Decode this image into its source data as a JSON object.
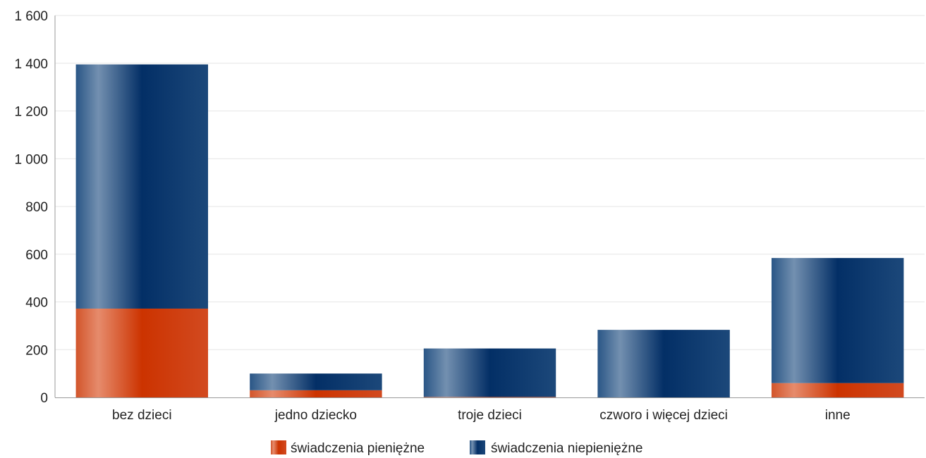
{
  "chart_data": {
    "type": "bar",
    "stacked": true,
    "title": "",
    "xlabel": "",
    "ylabel": "",
    "categories": [
      "bez dzieci",
      "jedno dziecko",
      "troje dzieci",
      "czworo i więcej dzieci",
      "inne"
    ],
    "series": [
      {
        "name": "świadczenia pieniężne",
        "values": [
          372,
          30,
          2,
          0,
          60
        ],
        "color": "#cc3300"
      },
      {
        "name": "świadczenia niepieniężne",
        "values": [
          1023,
          70,
          203,
          283,
          524
        ],
        "color": "#0b3a70"
      }
    ],
    "ylim": [
      0,
      1600
    ],
    "yticks": [
      "0",
      "200",
      "400",
      "600",
      "800",
      "1 000",
      "1 200",
      "1 400",
      "1 600"
    ],
    "ytick_values": [
      0,
      200,
      400,
      600,
      800,
      1000,
      1200,
      1400,
      1600
    ],
    "grid": true,
    "legend_position": "bottom-center"
  }
}
